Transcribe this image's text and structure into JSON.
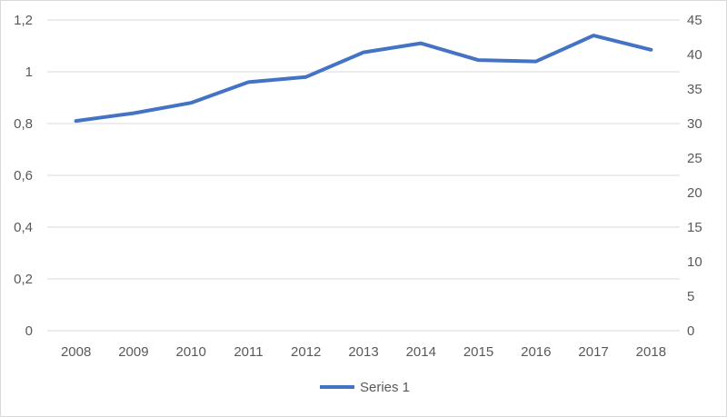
{
  "chart_data": {
    "type": "line",
    "categories": [
      "2008",
      "2009",
      "2010",
      "2011",
      "2012",
      "2013",
      "2014",
      "2015",
      "2016",
      "2017",
      "2018"
    ],
    "series": [
      {
        "name": "Series 1",
        "axis": "left",
        "color": "#4472c4",
        "values": [
          0.81,
          0.84,
          0.88,
          0.96,
          0.98,
          1.075,
          1.11,
          1.045,
          1.04,
          1.14,
          1.085
        ]
      }
    ],
    "title": "",
    "xlabel": "",
    "ylabel": "",
    "y_left": {
      "min": 0,
      "max": 1.2,
      "step": 0.2,
      "tick_labels": [
        "0",
        "0,2",
        "0,4",
        "0,6",
        "0,8",
        "1",
        "1,2"
      ]
    },
    "y_right": {
      "min": 0,
      "max": 45,
      "step": 5,
      "tick_labels": [
        "0",
        "5",
        "10",
        "15",
        "20",
        "25",
        "30",
        "35",
        "40",
        "45"
      ]
    },
    "grid": true,
    "gridline_color": "#d9d9d9",
    "legend_position": "bottom"
  }
}
